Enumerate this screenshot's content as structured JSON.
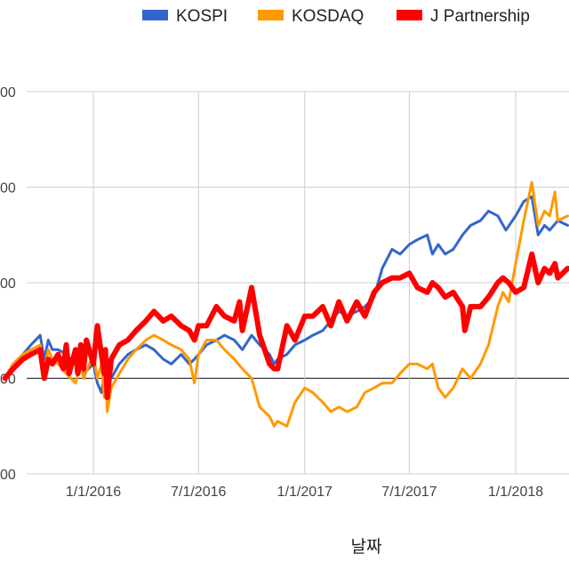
{
  "chart_data": {
    "type": "line",
    "xlabel": "날짜",
    "x_ticks": [
      "1/1/2016",
      "7/1/2016",
      "1/1/2017",
      "7/1/2017",
      "1/1/2018"
    ],
    "y_ticks": [
      "00",
      "00",
      "00",
      "00",
      "00"
    ],
    "grid": true,
    "legend_position": "top",
    "baseline_y": 0,
    "ylim": [
      -0.2,
      0.6
    ],
    "series": [
      {
        "name": "KOSPI",
        "color": "#3366cc",
        "points": [
          [
            "2015-08-01",
            0.0
          ],
          [
            "2015-08-15",
            0.03
          ],
          [
            "2015-09-01",
            0.05
          ],
          [
            "2015-09-15",
            0.07
          ],
          [
            "2015-10-01",
            0.09
          ],
          [
            "2015-10-08",
            0.04
          ],
          [
            "2015-10-15",
            0.08
          ],
          [
            "2015-10-22",
            0.06
          ],
          [
            "2015-11-01",
            0.06
          ],
          [
            "2015-11-15",
            0.05
          ],
          [
            "2015-12-01",
            0.03
          ],
          [
            "2015-12-15",
            0.01
          ],
          [
            "2016-01-01",
            0.03
          ],
          [
            "2016-01-08",
            -0.01
          ],
          [
            "2016-01-15",
            -0.03
          ],
          [
            "2016-01-22",
            0.02
          ],
          [
            "2016-02-01",
            0.0
          ],
          [
            "2016-02-15",
            0.03
          ],
          [
            "2016-03-01",
            0.05
          ],
          [
            "2016-03-15",
            0.06
          ],
          [
            "2016-04-01",
            0.07
          ],
          [
            "2016-04-15",
            0.06
          ],
          [
            "2016-05-01",
            0.04
          ],
          [
            "2016-05-15",
            0.03
          ],
          [
            "2016-06-01",
            0.05
          ],
          [
            "2016-06-15",
            0.03
          ],
          [
            "2016-06-24",
            0.04
          ],
          [
            "2016-07-01",
            0.05
          ],
          [
            "2016-07-15",
            0.07
          ],
          [
            "2016-08-01",
            0.08
          ],
          [
            "2016-08-15",
            0.09
          ],
          [
            "2016-09-01",
            0.08
          ],
          [
            "2016-09-15",
            0.06
          ],
          [
            "2016-10-01",
            0.09
          ],
          [
            "2016-10-15",
            0.07
          ],
          [
            "2016-11-01",
            0.05
          ],
          [
            "2016-11-09",
            0.03
          ],
          [
            "2016-11-15",
            0.04
          ],
          [
            "2016-12-01",
            0.05
          ],
          [
            "2016-12-15",
            0.07
          ],
          [
            "2017-01-01",
            0.08
          ],
          [
            "2017-01-15",
            0.09
          ],
          [
            "2017-02-01",
            0.1
          ],
          [
            "2017-02-15",
            0.12
          ],
          [
            "2017-03-01",
            0.14
          ],
          [
            "2017-03-15",
            0.13
          ],
          [
            "2017-04-01",
            0.14
          ],
          [
            "2017-04-15",
            0.15
          ],
          [
            "2017-05-01",
            0.17
          ],
          [
            "2017-05-15",
            0.23
          ],
          [
            "2017-06-01",
            0.27
          ],
          [
            "2017-06-15",
            0.26
          ],
          [
            "2017-07-01",
            0.28
          ],
          [
            "2017-07-15",
            0.29
          ],
          [
            "2017-08-01",
            0.3
          ],
          [
            "2017-08-10",
            0.26
          ],
          [
            "2017-08-20",
            0.28
          ],
          [
            "2017-09-01",
            0.26
          ],
          [
            "2017-09-15",
            0.27
          ],
          [
            "2017-10-01",
            0.3
          ],
          [
            "2017-10-15",
            0.32
          ],
          [
            "2017-11-01",
            0.33
          ],
          [
            "2017-11-15",
            0.35
          ],
          [
            "2017-12-01",
            0.34
          ],
          [
            "2017-12-15",
            0.31
          ],
          [
            "2018-01-01",
            0.34
          ],
          [
            "2018-01-15",
            0.37
          ],
          [
            "2018-01-29",
            0.38
          ],
          [
            "2018-02-09",
            0.3
          ],
          [
            "2018-02-20",
            0.32
          ],
          [
            "2018-03-01",
            0.31
          ],
          [
            "2018-03-15",
            0.33
          ],
          [
            "2018-04-01",
            0.32
          ]
        ]
      },
      {
        "name": "KOSDAQ",
        "color": "#ff9900",
        "points": [
          [
            "2015-08-01",
            0.0
          ],
          [
            "2015-08-15",
            0.03
          ],
          [
            "2015-09-01",
            0.05
          ],
          [
            "2015-09-15",
            0.06
          ],
          [
            "2015-10-01",
            0.07
          ],
          [
            "2015-10-08",
            0.02
          ],
          [
            "2015-10-15",
            0.06
          ],
          [
            "2015-10-22",
            0.04
          ],
          [
            "2015-11-01",
            0.03
          ],
          [
            "2015-11-15",
            0.01
          ],
          [
            "2015-12-01",
            -0.01
          ],
          [
            "2015-12-10",
            0.03
          ],
          [
            "2015-12-15",
            0.0
          ],
          [
            "2016-01-01",
            0.05
          ],
          [
            "2016-01-08",
            0.0
          ],
          [
            "2016-01-15",
            0.03
          ],
          [
            "2016-01-20",
            -0.04
          ],
          [
            "2016-01-22",
            0.03
          ],
          [
            "2016-01-25",
            -0.07
          ],
          [
            "2016-02-01",
            -0.02
          ],
          [
            "2016-02-15",
            0.01
          ],
          [
            "2016-03-01",
            0.04
          ],
          [
            "2016-03-15",
            0.06
          ],
          [
            "2016-04-01",
            0.08
          ],
          [
            "2016-04-15",
            0.09
          ],
          [
            "2016-05-01",
            0.08
          ],
          [
            "2016-05-15",
            0.07
          ],
          [
            "2016-06-01",
            0.06
          ],
          [
            "2016-06-15",
            0.04
          ],
          [
            "2016-06-24",
            -0.01
          ],
          [
            "2016-07-01",
            0.05
          ],
          [
            "2016-07-15",
            0.08
          ],
          [
            "2016-08-01",
            0.08
          ],
          [
            "2016-08-15",
            0.06
          ],
          [
            "2016-09-01",
            0.04
          ],
          [
            "2016-09-15",
            0.02
          ],
          [
            "2016-10-01",
            0.0
          ],
          [
            "2016-10-15",
            -0.06
          ],
          [
            "2016-11-01",
            -0.08
          ],
          [
            "2016-11-09",
            -0.1
          ],
          [
            "2016-11-15",
            -0.09
          ],
          [
            "2016-12-01",
            -0.1
          ],
          [
            "2016-12-15",
            -0.05
          ],
          [
            "2017-01-01",
            -0.02
          ],
          [
            "2017-01-15",
            -0.03
          ],
          [
            "2017-02-01",
            -0.05
          ],
          [
            "2017-02-15",
            -0.07
          ],
          [
            "2017-03-01",
            -0.06
          ],
          [
            "2017-03-15",
            -0.07
          ],
          [
            "2017-04-01",
            -0.06
          ],
          [
            "2017-04-15",
            -0.03
          ],
          [
            "2017-05-01",
            -0.02
          ],
          [
            "2017-05-15",
            -0.01
          ],
          [
            "2017-06-01",
            -0.01
          ],
          [
            "2017-06-15",
            0.01
          ],
          [
            "2017-07-01",
            0.03
          ],
          [
            "2017-07-15",
            0.03
          ],
          [
            "2017-08-01",
            0.02
          ],
          [
            "2017-08-10",
            0.03
          ],
          [
            "2017-08-20",
            -0.02
          ],
          [
            "2017-09-01",
            -0.04
          ],
          [
            "2017-09-15",
            -0.02
          ],
          [
            "2017-10-01",
            0.02
          ],
          [
            "2017-10-15",
            0.0
          ],
          [
            "2017-11-01",
            0.03
          ],
          [
            "2017-11-15",
            0.07
          ],
          [
            "2017-12-01",
            0.15
          ],
          [
            "2017-12-10",
            0.18
          ],
          [
            "2017-12-20",
            0.16
          ],
          [
            "2018-01-01",
            0.24
          ],
          [
            "2018-01-15",
            0.33
          ],
          [
            "2018-01-29",
            0.41
          ],
          [
            "2018-02-09",
            0.32
          ],
          [
            "2018-02-20",
            0.35
          ],
          [
            "2018-03-01",
            0.34
          ],
          [
            "2018-03-10",
            0.39
          ],
          [
            "2018-03-15",
            0.33
          ],
          [
            "2018-04-01",
            0.34
          ]
        ]
      },
      {
        "name": "J Partnership",
        "color": "#ff0000",
        "points": [
          [
            "2015-08-01",
            0.0
          ],
          [
            "2015-08-15",
            0.02
          ],
          [
            "2015-09-01",
            0.04
          ],
          [
            "2015-09-15",
            0.05
          ],
          [
            "2015-10-01",
            0.06
          ],
          [
            "2015-10-08",
            0.0
          ],
          [
            "2015-10-15",
            0.04
          ],
          [
            "2015-10-22",
            0.03
          ],
          [
            "2015-11-01",
            0.05
          ],
          [
            "2015-11-10",
            0.02
          ],
          [
            "2015-11-15",
            0.07
          ],
          [
            "2015-11-20",
            0.01
          ],
          [
            "2015-12-01",
            0.06
          ],
          [
            "2015-12-05",
            0.01
          ],
          [
            "2015-12-10",
            0.07
          ],
          [
            "2015-12-15",
            0.02
          ],
          [
            "2015-12-20",
            0.08
          ],
          [
            "2016-01-01",
            0.03
          ],
          [
            "2016-01-08",
            0.11
          ],
          [
            "2016-01-15",
            0.05
          ],
          [
            "2016-01-20",
            0.01
          ],
          [
            "2016-01-22",
            0.06
          ],
          [
            "2016-01-25",
            -0.04
          ],
          [
            "2016-02-01",
            0.04
          ],
          [
            "2016-02-15",
            0.07
          ],
          [
            "2016-03-01",
            0.08
          ],
          [
            "2016-03-15",
            0.1
          ],
          [
            "2016-04-01",
            0.12
          ],
          [
            "2016-04-15",
            0.14
          ],
          [
            "2016-05-01",
            0.12
          ],
          [
            "2016-05-15",
            0.13
          ],
          [
            "2016-06-01",
            0.11
          ],
          [
            "2016-06-15",
            0.1
          ],
          [
            "2016-06-24",
            0.08
          ],
          [
            "2016-07-01",
            0.11
          ],
          [
            "2016-07-15",
            0.11
          ],
          [
            "2016-08-01",
            0.15
          ],
          [
            "2016-08-15",
            0.13
          ],
          [
            "2016-09-01",
            0.12
          ],
          [
            "2016-09-10",
            0.16
          ],
          [
            "2016-09-15",
            0.1
          ],
          [
            "2016-10-01",
            0.19
          ],
          [
            "2016-10-15",
            0.09
          ],
          [
            "2016-11-01",
            0.03
          ],
          [
            "2016-11-09",
            0.02
          ],
          [
            "2016-11-15",
            0.02
          ],
          [
            "2016-12-01",
            0.11
          ],
          [
            "2016-12-15",
            0.08
          ],
          [
            "2017-01-01",
            0.13
          ],
          [
            "2017-01-15",
            0.13
          ],
          [
            "2017-02-01",
            0.15
          ],
          [
            "2017-02-15",
            0.11
          ],
          [
            "2017-03-01",
            0.16
          ],
          [
            "2017-03-15",
            0.12
          ],
          [
            "2017-04-01",
            0.16
          ],
          [
            "2017-04-15",
            0.13
          ],
          [
            "2017-05-01",
            0.18
          ],
          [
            "2017-05-15",
            0.2
          ],
          [
            "2017-06-01",
            0.21
          ],
          [
            "2017-06-15",
            0.21
          ],
          [
            "2017-07-01",
            0.22
          ],
          [
            "2017-07-15",
            0.19
          ],
          [
            "2017-08-01",
            0.18
          ],
          [
            "2017-08-10",
            0.2
          ],
          [
            "2017-08-20",
            0.19
          ],
          [
            "2017-09-01",
            0.17
          ],
          [
            "2017-09-15",
            0.18
          ],
          [
            "2017-10-01",
            0.15
          ],
          [
            "2017-10-05",
            0.1
          ],
          [
            "2017-10-15",
            0.15
          ],
          [
            "2017-11-01",
            0.15
          ],
          [
            "2017-11-15",
            0.17
          ],
          [
            "2017-12-01",
            0.2
          ],
          [
            "2017-12-10",
            0.21
          ],
          [
            "2017-12-20",
            0.2
          ],
          [
            "2018-01-01",
            0.18
          ],
          [
            "2018-01-15",
            0.19
          ],
          [
            "2018-01-29",
            0.26
          ],
          [
            "2018-02-09",
            0.2
          ],
          [
            "2018-02-20",
            0.23
          ],
          [
            "2018-03-01",
            0.22
          ],
          [
            "2018-03-10",
            0.24
          ],
          [
            "2018-03-15",
            0.21
          ],
          [
            "2018-04-01",
            0.23
          ]
        ]
      }
    ]
  }
}
